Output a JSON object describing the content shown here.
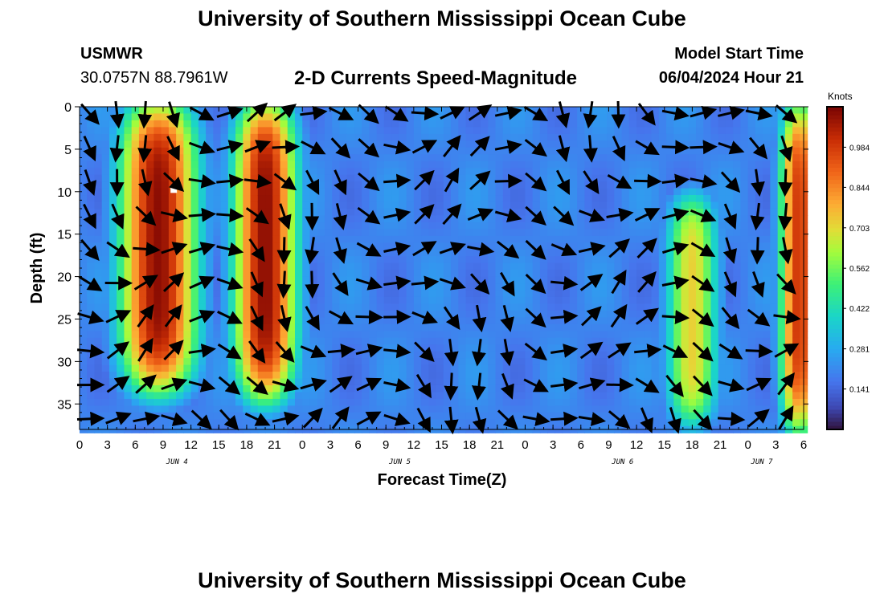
{
  "header": {
    "title": "University of Southern Mississippi Ocean Cube",
    "station": "USMWR",
    "coords": "30.0757N  88.7961W",
    "chart_title": "2-D Currents Speed-Magnitude",
    "model_label": "Model Start Time",
    "model_time": "06/04/2024 Hour 21"
  },
  "footer": {
    "title": "University of Southern Mississippi Ocean Cube"
  },
  "colors": {
    "arrow": "#000000",
    "marker": "#ffffff"
  },
  "chart_data": {
    "type": "heatmap",
    "title": "2-D Currents Speed-Magnitude",
    "xlabel": "Forecast Time(Z)",
    "ylabel": "Depth (ft)",
    "x_hours_range": [
      0,
      78
    ],
    "ylim": [
      0,
      38
    ],
    "y_inverted": true,
    "x_tick_labels": [
      "0",
      "3",
      "6",
      "9",
      "12",
      "15",
      "18",
      "21",
      "0",
      "3",
      "6",
      "9",
      "12",
      "15",
      "18",
      "21",
      "0",
      "3",
      "6",
      "9",
      "12",
      "15",
      "18",
      "21",
      "0",
      "3",
      "6"
    ],
    "y_tick_labels": [
      "0",
      "5",
      "10",
      "15",
      "20",
      "25",
      "30",
      "35"
    ],
    "y_ticks": [
      0,
      5,
      10,
      15,
      20,
      25,
      30,
      35
    ],
    "date_labels": [
      {
        "label": "JUN 4",
        "hour": 10.5
      },
      {
        "label": "JUN 5",
        "hour": 34.5
      },
      {
        "label": "JUN 6",
        "hour": 58.5
      },
      {
        "label": "JUN 7",
        "hour": 73.5
      }
    ],
    "colorbar": {
      "title": "Knots",
      "tick_labels": [
        "0.984",
        "0.844",
        "0.703",
        "0.562",
        "0.422",
        "0.281",
        "0.141"
      ],
      "tick_values": [
        0.984,
        0.844,
        0.703,
        0.562,
        0.422,
        0.281,
        0.141
      ],
      "range": [
        0,
        1.125
      ],
      "colormap": "turbo"
    },
    "speed_features": [
      {
        "hour_center": 8.5,
        "hour_width": 3.2,
        "depth_top": 0,
        "depth_bottom": 33,
        "peak": 1.1
      },
      {
        "hour_center": 20.0,
        "hour_width": 2.6,
        "depth_top": 0,
        "depth_bottom": 34,
        "peak": 1.1
      },
      {
        "hour_center": 66.0,
        "hour_width": 2.2,
        "depth_top": 11,
        "depth_bottom": 37,
        "peak": 0.72
      },
      {
        "hour_center": 77.5,
        "hour_width": 1.6,
        "depth_top": 0,
        "depth_bottom": 38,
        "peak": 1.0
      }
    ],
    "flow_vectors_hours": [
      0,
      3,
      6,
      9,
      12,
      15,
      18,
      21,
      24,
      27,
      30,
      33,
      36,
      39,
      42,
      45,
      48,
      51,
      54,
      57,
      60,
      63,
      66,
      69,
      72,
      75,
      78
    ],
    "flow_vectors_depths": [
      0,
      4,
      8,
      12,
      16,
      20,
      24,
      28,
      32,
      36
    ]
  }
}
